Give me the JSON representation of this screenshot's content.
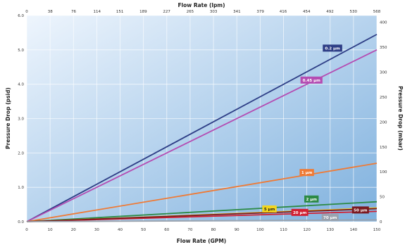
{
  "chart_data": {
    "type": "line",
    "xlabel": "Flow Rate (GPM)",
    "x2label": "Flow Rate (lpm)",
    "ylabel": "Pressure Drop (psid)",
    "y2label": "Pressure Drop (mbar)",
    "xlim": [
      0,
      150
    ],
    "ylim": [
      0,
      6.0
    ],
    "x2lim": [
      0,
      568
    ],
    "y2lim": [
      0,
      413.7
    ],
    "grid": true,
    "x_ticks": [
      "0",
      "10",
      "20",
      "30",
      "40",
      "50",
      "60",
      "70",
      "80",
      "90",
      "100",
      "110",
      "120",
      "130",
      "140",
      "150"
    ],
    "x2_ticks": [
      "0",
      "38",
      "76",
      "114",
      "151",
      "189",
      "227",
      "265",
      "303",
      "341",
      "379",
      "416",
      "454",
      "492",
      "530",
      "568"
    ],
    "y_ticks": [
      "0.0",
      "1.0",
      "2.0",
      "3.0",
      "4.0",
      "5.0",
      "6.0"
    ],
    "y2_ticks": [
      "0",
      "50",
      "100",
      "150",
      "200",
      "250",
      "300",
      "350",
      "400"
    ],
    "background": {
      "top_left": "#eef5fd",
      "bottom_right": "#7fb1de"
    },
    "series": [
      {
        "name": "0.2 µm",
        "color": "#2e3e86",
        "x": [
          0,
          150
        ],
        "y": [
          0,
          5.45
        ],
        "label_at": [
          131,
          5.05
        ]
      },
      {
        "name": "0.45 µm",
        "color": "#b44cb2",
        "x": [
          0,
          150
        ],
        "y": [
          0,
          5.0
        ],
        "label_at": [
          122,
          4.12
        ]
      },
      {
        "name": "1 µm",
        "color": "#ef7a35",
        "x": [
          0,
          150
        ],
        "y": [
          0,
          1.7
        ],
        "label_at": [
          120,
          1.43
        ]
      },
      {
        "name": "2 µm",
        "color": "#2c8a44",
        "x": [
          0,
          150
        ],
        "y": [
          0,
          0.58
        ],
        "label_at": [
          122,
          0.66
        ]
      },
      {
        "name": "5 µm",
        "color": "#f2d51e",
        "x": [
          0,
          150
        ],
        "y": [
          0,
          0.4
        ],
        "label_at": [
          104,
          0.37
        ]
      },
      {
        "name": "20 µm",
        "color": "#d21f31",
        "x": [
          0,
          150
        ],
        "y": [
          0,
          0.3
        ],
        "label_at": [
          117,
          0.27
        ]
      },
      {
        "name": "50 µm",
        "color": "#7a1920",
        "x": [
          0,
          150
        ],
        "y": [
          0,
          0.38
        ],
        "label_at": [
          143,
          0.34
        ]
      },
      {
        "name": "70 µm",
        "color": "#9aa2ad",
        "x": [
          0,
          150
        ],
        "y": [
          0,
          0.05
        ],
        "label_at": [
          130,
          0.12
        ]
      }
    ]
  }
}
